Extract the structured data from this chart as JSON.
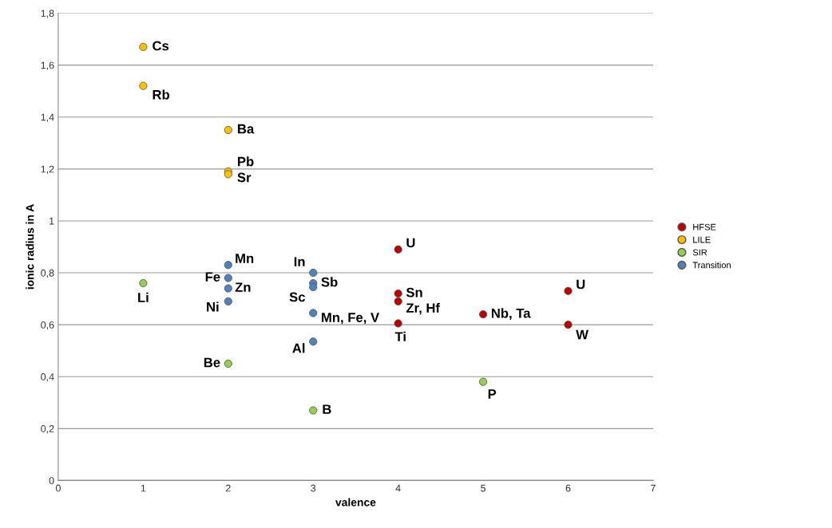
{
  "chart_data": {
    "type": "scatter",
    "xlabel": "valence",
    "ylabel": "ionic radius in A",
    "xlim": [
      0,
      7
    ],
    "xticks": [
      0,
      1,
      2,
      3,
      4,
      5,
      6,
      7
    ],
    "ylim": [
      0,
      1.8
    ],
    "yticks": [
      0,
      {
        "value": 0.2,
        "label": "0,2"
      },
      {
        "value": 0.4,
        "label": "0,4"
      },
      {
        "value": 0.6,
        "label": "0,6"
      },
      {
        "value": 0.8,
        "label": "0,8"
      },
      1,
      {
        "value": 1.2,
        "label": "1,2"
      },
      {
        "value": 1.4,
        "label": "1,4"
      },
      {
        "value": 1.6,
        "label": "1,6"
      },
      {
        "value": 1.8,
        "label": "1,8"
      }
    ],
    "grid": "y",
    "legend": "right",
    "marker": "circle",
    "series": [
      {
        "name": "HFSE",
        "color": "#c00000",
        "x": [
          4,
          4,
          4,
          4,
          5,
          6,
          6
        ],
        "values": [
          0.89,
          0.72,
          0.69,
          0.605,
          0.64,
          0.73,
          0.6
        ]
      },
      {
        "name": "LILE",
        "color": "#ffc000",
        "x": [
          1,
          1,
          2,
          2,
          2
        ],
        "values": [
          1.67,
          1.52,
          1.35,
          1.19,
          1.18
        ]
      },
      {
        "name": "SIR",
        "color": "#92d050",
        "x": [
          1,
          2,
          3,
          5
        ],
        "values": [
          0.76,
          0.45,
          0.27,
          0.38
        ]
      },
      {
        "name": "Transition",
        "color": "#4f81bd",
        "x": [
          2,
          2,
          2,
          2,
          3,
          3,
          3,
          3,
          3
        ],
        "values": [
          0.83,
          0.78,
          0.74,
          0.69,
          0.8,
          0.76,
          0.745,
          0.645,
          0.535
        ]
      }
    ],
    "annotations": [
      {
        "text": "Cs",
        "x": 1,
        "y": 1.67
      },
      {
        "text": "Rb",
        "x": 1,
        "y": 1.52
      },
      {
        "text": "Ba",
        "x": 2,
        "y": 1.35
      },
      {
        "text": "Pb",
        "x": 2,
        "y": 1.19
      },
      {
        "text": "Sr",
        "x": 2,
        "y": 1.18
      },
      {
        "text": "Li",
        "x": 1,
        "y": 0.76
      },
      {
        "text": "Be",
        "x": 2,
        "y": 0.45
      },
      {
        "text": "B",
        "x": 3,
        "y": 0.27
      },
      {
        "text": "P",
        "x": 5,
        "y": 0.38
      },
      {
        "text": "Mn",
        "x": 2,
        "y": 0.83
      },
      {
        "text": "Fe",
        "x": 2,
        "y": 0.78
      },
      {
        "text": "Zn",
        "x": 2,
        "y": 0.74
      },
      {
        "text": "Ni",
        "x": 2,
        "y": 0.69
      },
      {
        "text": "In",
        "x": 3,
        "y": 0.8
      },
      {
        "text": "Sb",
        "x": 3,
        "y": 0.76
      },
      {
        "text": "Sc",
        "x": 3,
        "y": 0.745
      },
      {
        "text": "Mn, Fe, V",
        "x": 3,
        "y": 0.645
      },
      {
        "text": "Al",
        "x": 3,
        "y": 0.535
      },
      {
        "text": "U",
        "x": 4,
        "y": 0.89
      },
      {
        "text": "Sn",
        "x": 4,
        "y": 0.72
      },
      {
        "text": "Zr, Hf",
        "x": 4,
        "y": 0.69
      },
      {
        "text": "Ti",
        "x": 4,
        "y": 0.605
      },
      {
        "text": "Nb, Ta",
        "x": 5,
        "y": 0.64
      },
      {
        "text": "U",
        "x": 6,
        "y": 0.73
      },
      {
        "text": "W",
        "x": 6,
        "y": 0.6
      }
    ]
  }
}
